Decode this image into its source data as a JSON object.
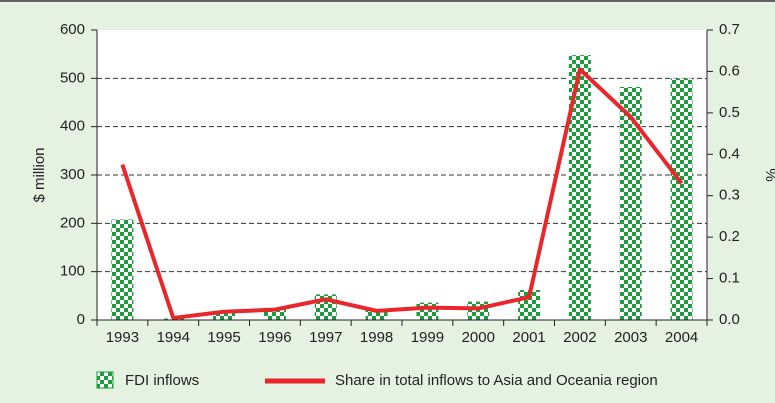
{
  "chart_data": {
    "type": "bar",
    "categories": [
      "1993",
      "1994",
      "1995",
      "1996",
      "1997",
      "1998",
      "1999",
      "2000",
      "2001",
      "2002",
      "2003",
      "2004"
    ],
    "series": [
      {
        "name": "FDI inflows",
        "type": "bar",
        "color": "#1e9b3c",
        "values": [
          208,
          3,
          15,
          25,
          53,
          22,
          36,
          38,
          62,
          548,
          482,
          500
        ]
      },
      {
        "name": "Share in total inflows to Asia and Oceania region",
        "type": "line",
        "axis": "y2",
        "color": "#e8262b",
        "values": [
          0.375,
          0.005,
          0.02,
          0.025,
          0.05,
          0.022,
          0.03,
          0.028,
          0.055,
          0.605,
          0.49,
          0.33
        ]
      }
    ],
    "ylabel": "$ million",
    "y2label": "%",
    "ylim": [
      0,
      600
    ],
    "yticks": [
      0,
      100,
      200,
      300,
      400,
      500,
      600
    ],
    "y2lim": [
      0,
      0.7
    ],
    "y2ticks": [
      {
        "value": 0,
        "label": "0.0"
      },
      0.1,
      0.2,
      0.3,
      0.4,
      0.5,
      0.6,
      0.7
    ],
    "grid": true,
    "legend": "bottom"
  }
}
